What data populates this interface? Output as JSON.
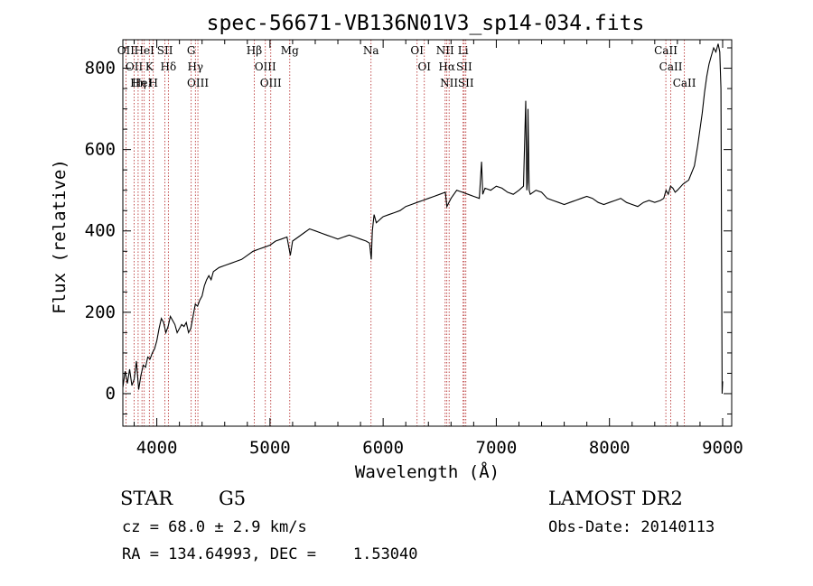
{
  "chart_data": {
    "type": "line",
    "title": "spec-56671-VB136N01V3_sp14-034.fits",
    "xlabel": "Wavelength (Å)",
    "ylabel": "Flux (relative)",
    "xlim": [
      3700,
      9080
    ],
    "ylim": [
      -80,
      870
    ],
    "x_ticks": [
      4000,
      5000,
      6000,
      7000,
      8000,
      9000
    ],
    "y_ticks": [
      0,
      200,
      400,
      600,
      800
    ],
    "line_color": "#000000",
    "marker_color": "#b22222",
    "series": [
      {
        "x": [
          3700,
          3720,
          3740,
          3760,
          3780,
          3800,
          3820,
          3840,
          3860,
          3880,
          3900,
          3920,
          3940,
          3960,
          3980,
          4000,
          4020,
          4040,
          4060,
          4080,
          4100,
          4120,
          4140,
          4160,
          4180,
          4200,
          4220,
          4240,
          4260,
          4280,
          4300,
          4320,
          4340,
          4360,
          4380,
          4400,
          4420,
          4440,
          4460,
          4480,
          4500,
          4550,
          4600,
          4650,
          4700,
          4750,
          4800,
          4850,
          4900,
          4950,
          5000,
          5050,
          5100,
          5150,
          5180,
          5200,
          5250,
          5300,
          5350,
          5400,
          5450,
          5500,
          5550,
          5600,
          5650,
          5700,
          5750,
          5800,
          5850,
          5880,
          5895,
          5905,
          5920,
          5940,
          5960,
          5980,
          6000,
          6050,
          6100,
          6150,
          6200,
          6250,
          6300,
          6350,
          6400,
          6450,
          6500,
          6550,
          6563,
          6600,
          6650,
          6700,
          6750,
          6800,
          6850,
          6870,
          6880,
          6900,
          6950,
          7000,
          7050,
          7100,
          7150,
          7200,
          7240,
          7260,
          7270,
          7275,
          7280,
          7290,
          7300,
          7350,
          7400,
          7450,
          7500,
          7550,
          7600,
          7650,
          7700,
          7750,
          7800,
          7850,
          7900,
          7950,
          8000,
          8050,
          8100,
          8150,
          8200,
          8250,
          8300,
          8350,
          8400,
          8450,
          8480,
          8500,
          8520,
          8540,
          8560,
          8580,
          8600,
          8650,
          8700,
          8750,
          8780,
          8800,
          8820,
          8840,
          8860,
          8880,
          8900,
          8920,
          8940,
          8960,
          8975,
          8985,
          8990,
          8995,
          9000
        ],
        "y": [
          15,
          55,
          25,
          60,
          20,
          35,
          80,
          10,
          45,
          70,
          65,
          90,
          85,
          100,
          110,
          130,
          160,
          185,
          175,
          150,
          165,
          190,
          180,
          170,
          150,
          160,
          170,
          165,
          175,
          150,
          160,
          190,
          220,
          215,
          230,
          240,
          265,
          280,
          290,
          280,
          300,
          310,
          315,
          320,
          325,
          330,
          340,
          350,
          355,
          360,
          365,
          375,
          380,
          385,
          340,
          375,
          385,
          395,
          405,
          400,
          395,
          390,
          385,
          380,
          385,
          390,
          385,
          380,
          375,
          370,
          330,
          400,
          440,
          420,
          425,
          430,
          435,
          440,
          445,
          450,
          460,
          465,
          470,
          475,
          480,
          485,
          490,
          495,
          460,
          480,
          500,
          495,
          490,
          485,
          480,
          570,
          490,
          505,
          500,
          510,
          505,
          495,
          490,
          500,
          510,
          720,
          500,
          520,
          700,
          500,
          490,
          500,
          495,
          480,
          475,
          470,
          465,
          470,
          475,
          480,
          485,
          480,
          470,
          465,
          470,
          475,
          480,
          470,
          465,
          460,
          470,
          475,
          470,
          475,
          480,
          500,
          490,
          510,
          505,
          495,
          500,
          515,
          525,
          560,
          610,
          650,
          690,
          740,
          780,
          810,
          830,
          850,
          840,
          860,
          840,
          750,
          400,
          0,
          30
        ]
      }
    ],
    "lines": [
      {
        "wave": 3727,
        "labels": [
          "OII"
        ]
      },
      {
        "wave": 3800,
        "labels": [
          "OII"
        ]
      },
      {
        "wave": 3835,
        "labels": [
          "Hη"
        ]
      },
      {
        "wave": 3869,
        "labels": [
          "HeI"
        ]
      },
      {
        "wave": 3889,
        "labels": [
          "HeI"
        ]
      },
      {
        "wave": 3934,
        "labels": [
          "K"
        ]
      },
      {
        "wave": 3969,
        "labels": [
          "H"
        ]
      },
      {
        "wave": 4072,
        "labels": [
          "SII"
        ]
      },
      {
        "wave": 4102,
        "labels": [
          "Hδ"
        ]
      },
      {
        "wave": 4304,
        "labels": [
          "G"
        ]
      },
      {
        "wave": 4341,
        "labels": [
          "Hγ"
        ]
      },
      {
        "wave": 4363,
        "labels": [
          "OIII"
        ]
      },
      {
        "wave": 4861,
        "labels": [
          "Hβ"
        ]
      },
      {
        "wave": 4959,
        "labels": [
          "OIII"
        ]
      },
      {
        "wave": 5007,
        "labels": [
          "OIII"
        ]
      },
      {
        "wave": 5175,
        "labels": [
          "Mg"
        ]
      },
      {
        "wave": 5893,
        "labels": [
          "Na"
        ]
      },
      {
        "wave": 6300,
        "labels": [
          "OI"
        ]
      },
      {
        "wave": 6364,
        "labels": [
          "OI"
        ]
      },
      {
        "wave": 6548,
        "labels": [
          "NII"
        ]
      },
      {
        "wave": 6563,
        "labels": [
          "Hα"
        ]
      },
      {
        "wave": 6583,
        "labels": [
          "NII"
        ]
      },
      {
        "wave": 6707,
        "labels": [
          "Li"
        ]
      },
      {
        "wave": 6716,
        "labels": [
          "SII"
        ]
      },
      {
        "wave": 6731,
        "labels": [
          "SII"
        ]
      },
      {
        "wave": 8498,
        "labels": [
          "CaII"
        ]
      },
      {
        "wave": 8542,
        "labels": [
          "CaII"
        ]
      },
      {
        "wave": 8662,
        "labels": [
          "CaII"
        ]
      }
    ]
  },
  "info": {
    "class": "STAR",
    "subclass": "G5",
    "survey": "LAMOST DR2",
    "cz": "cz = 68.0 ± 2.9 km/s",
    "obs_date": "Obs-Date: 20140113",
    "coords": "RA = 134.64993, DEC =    1.53040"
  }
}
